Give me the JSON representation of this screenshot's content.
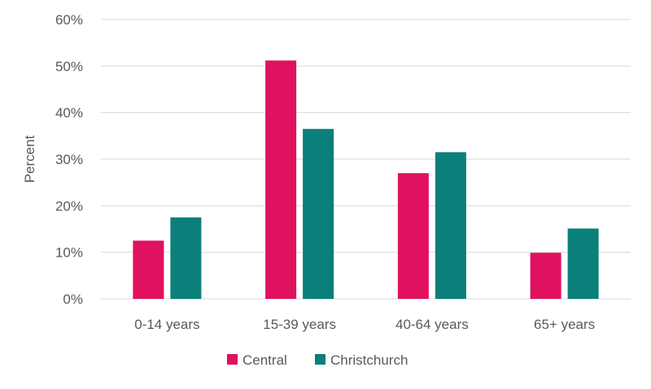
{
  "chart_data": {
    "type": "bar",
    "categories": [
      "0-14 years",
      "15-39 years",
      "40-64 years",
      "65+ years"
    ],
    "series": [
      {
        "name": "Central",
        "values": [
          12.5,
          51.2,
          27.0,
          9.9
        ],
        "color": "#E0115F"
      },
      {
        "name": "Christchurch",
        "values": [
          17.5,
          36.5,
          31.5,
          15.1
        ],
        "color": "#0B7F7A"
      }
    ],
    "title": "",
    "xlabel": "",
    "ylabel": "Percent",
    "ylim": [
      0,
      60
    ],
    "yticks": [
      "0%",
      "10%",
      "20%",
      "30%",
      "40%",
      "50%",
      "60%"
    ],
    "grid": true,
    "legend_position": "bottom"
  }
}
